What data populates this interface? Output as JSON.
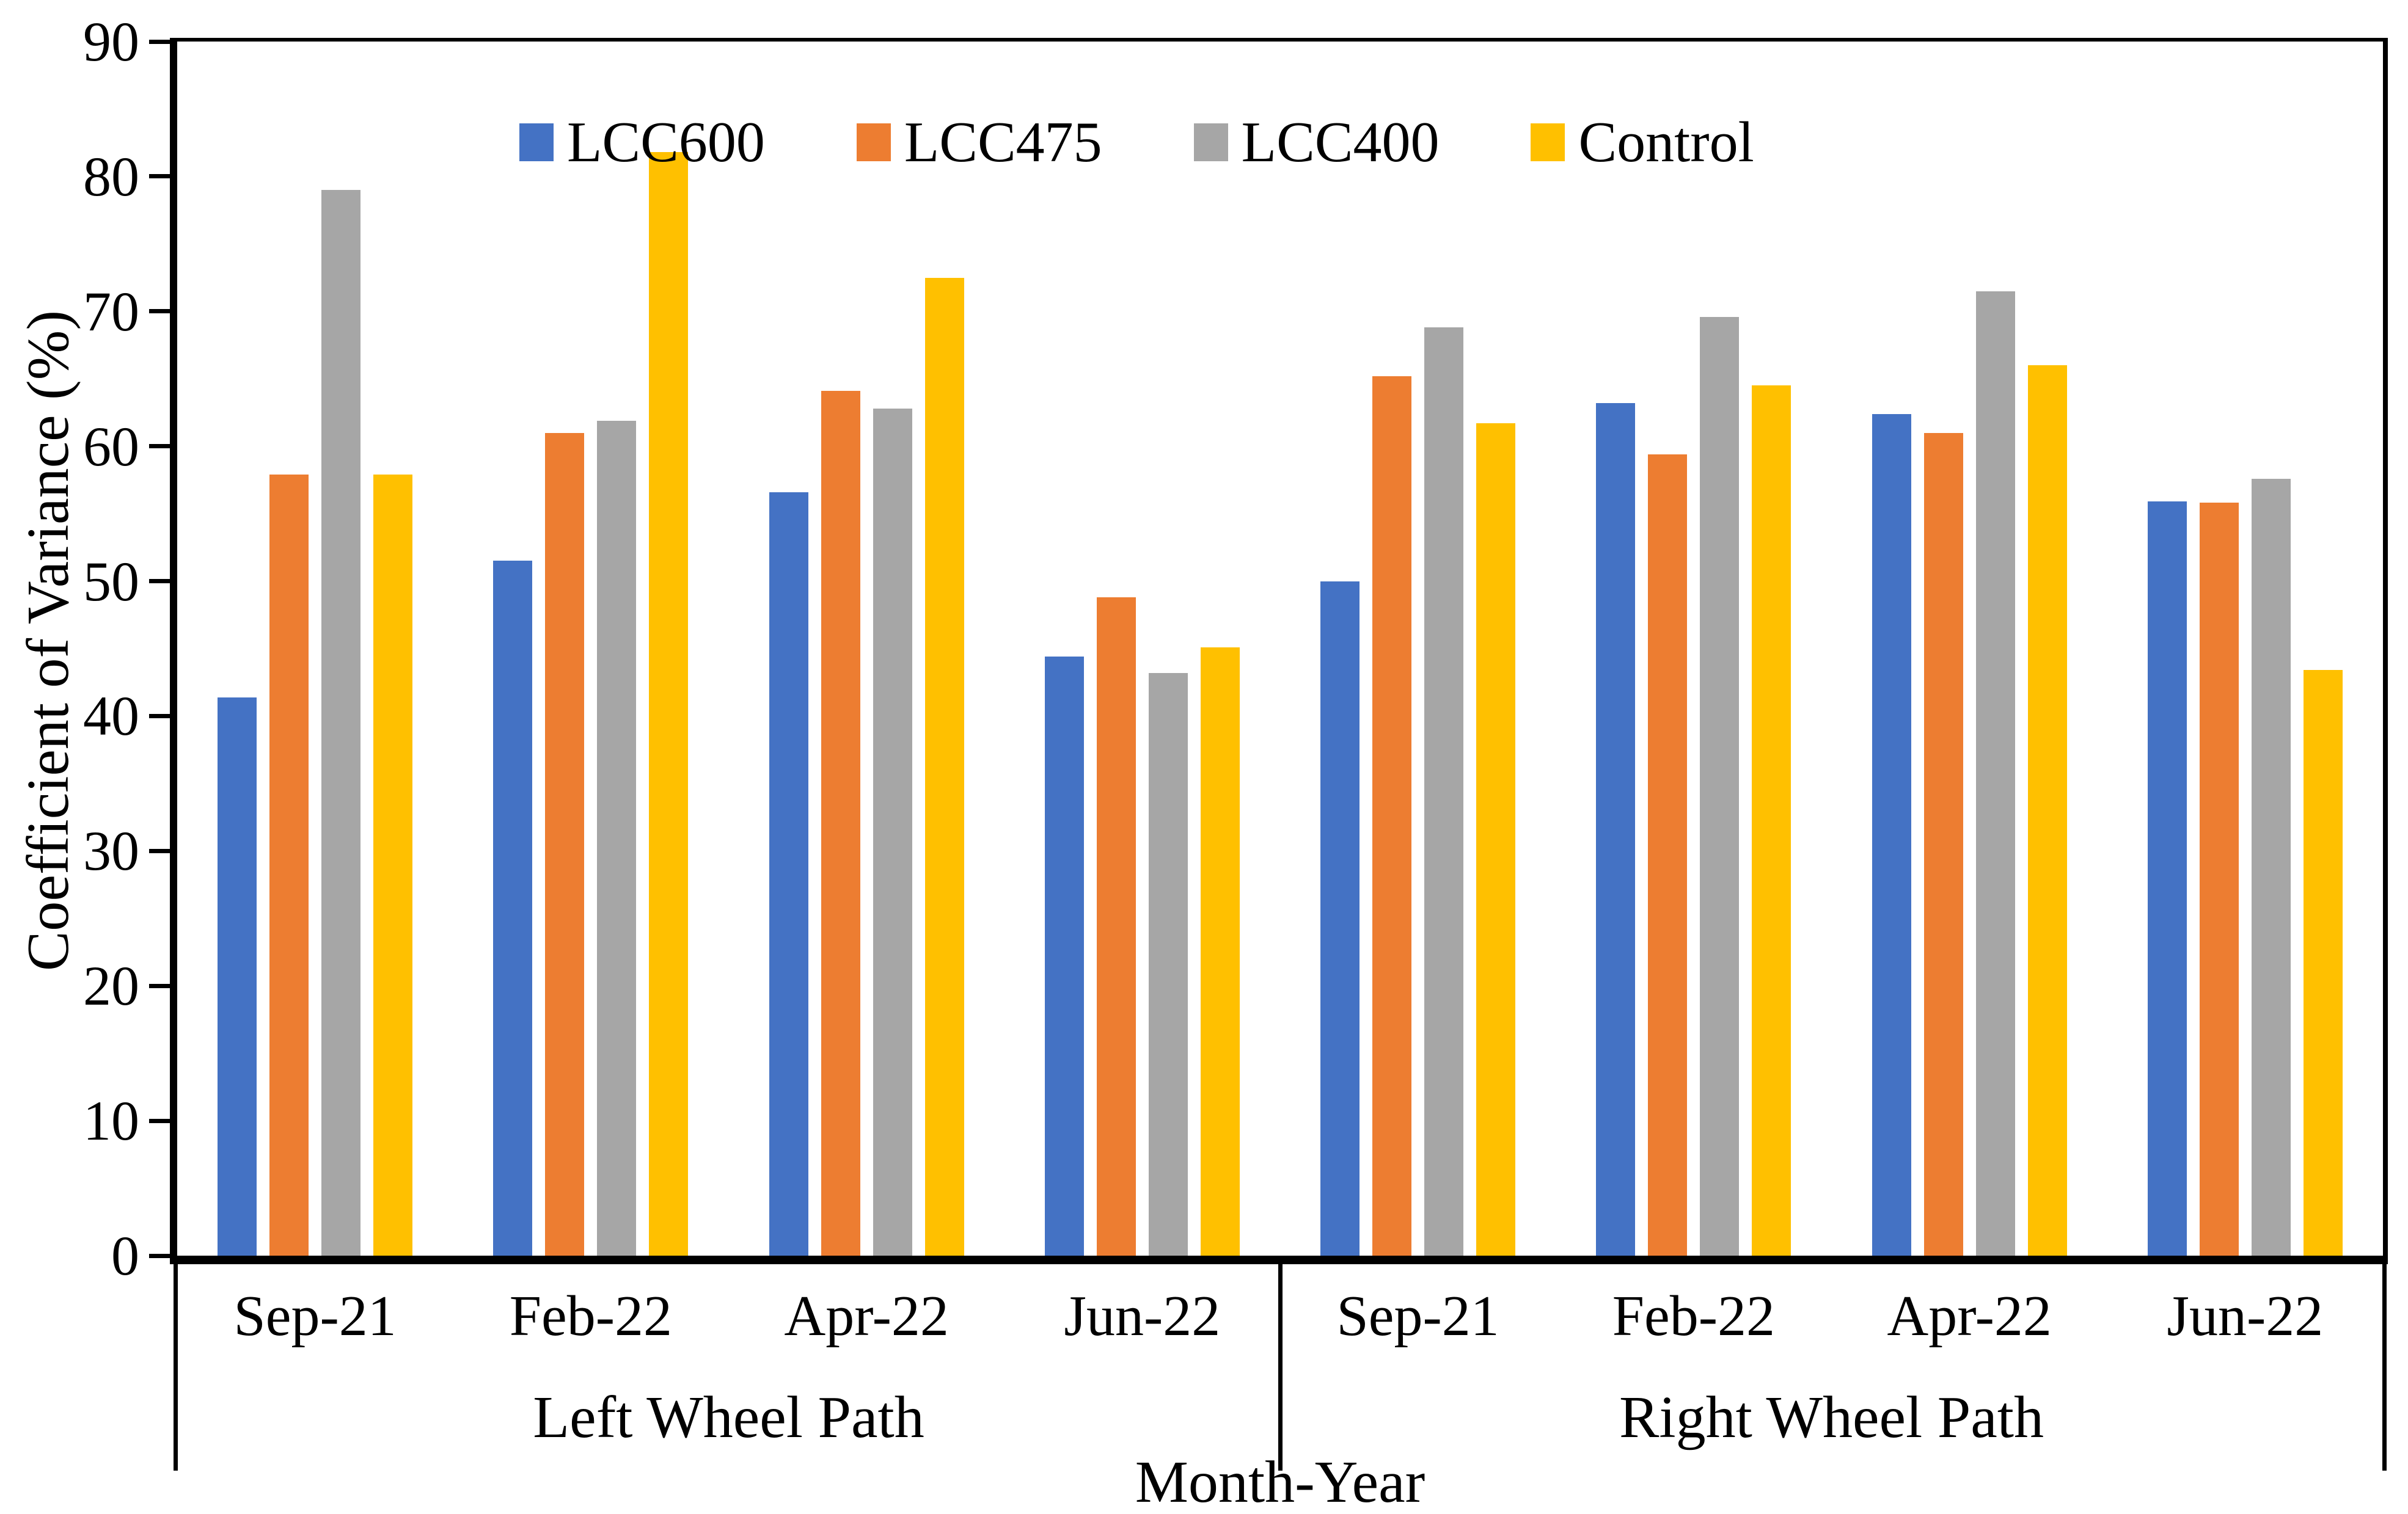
{
  "figure": {
    "background": "#ffffff",
    "text_color": "#000000"
  },
  "chart_data": {
    "type": "bar",
    "title": "",
    "xlabel": "Month-Year",
    "ylabel": "Coefficient of Variance (%)",
    "ylim": [
      0,
      90
    ],
    "ytick_step": 10,
    "yticks": [
      0,
      10,
      20,
      30,
      40,
      50,
      60,
      70,
      80,
      90
    ],
    "grid": "off",
    "legend_position": "top-inside",
    "sections": [
      {
        "label": "Left Wheel Path",
        "categories": [
          "Sep-21",
          "Feb-22",
          "Apr-22",
          "Jun-22"
        ]
      },
      {
        "label": "Right Wheel Path",
        "categories": [
          "Sep-21",
          "Feb-22",
          "Apr-22",
          "Jun-22"
        ]
      }
    ],
    "categories": [
      "Sep-21",
      "Feb-22",
      "Apr-22",
      "Jun-22",
      "Sep-21",
      "Feb-22",
      "Apr-22",
      "Jun-22"
    ],
    "series": [
      {
        "name": "LCC600",
        "color": "#4472C4",
        "pattern": "solid",
        "values": [
          41.4,
          51.5,
          56.6,
          44.4,
          50.0,
          63.2,
          62.4,
          55.9
        ]
      },
      {
        "name": "LCC475",
        "color": "#ED7D31",
        "pattern": "solid",
        "values": [
          57.9,
          61.0,
          64.1,
          48.8,
          65.2,
          59.4,
          61.0,
          55.8
        ]
      },
      {
        "name": "LCC400",
        "color": "#A6A6A6",
        "pattern": "textured",
        "values": [
          79.0,
          61.9,
          62.8,
          43.2,
          68.8,
          69.6,
          71.5,
          57.6
        ]
      },
      {
        "name": "Control",
        "color": "#FFC000",
        "pattern": "solid",
        "values": [
          57.9,
          81.8,
          72.5,
          45.1,
          61.7,
          64.5,
          66.0,
          43.4
        ]
      }
    ]
  }
}
